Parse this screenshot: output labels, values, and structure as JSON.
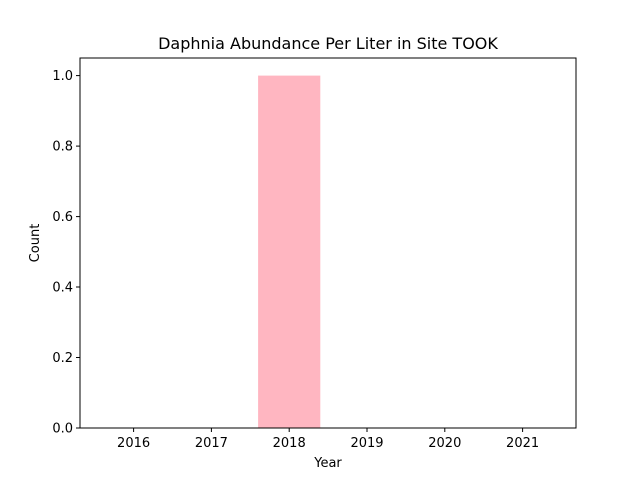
{
  "chart_data": {
    "type": "bar",
    "title": "Daphnia Abundance Per Liter in Site TOOK",
    "xlabel": "Year",
    "ylabel": "Count",
    "categories": [
      "2016",
      "2017",
      "2018",
      "2019",
      "2020",
      "2021"
    ],
    "values": [
      0,
      0,
      1,
      0,
      0,
      0
    ],
    "ylim": [
      0,
      1.05
    ],
    "yticks": [
      "0.0",
      "0.2",
      "0.4",
      "0.6",
      "0.8",
      "1.0"
    ],
    "bar_color": "#ffb6c1",
    "grid": false,
    "legend": "none"
  }
}
